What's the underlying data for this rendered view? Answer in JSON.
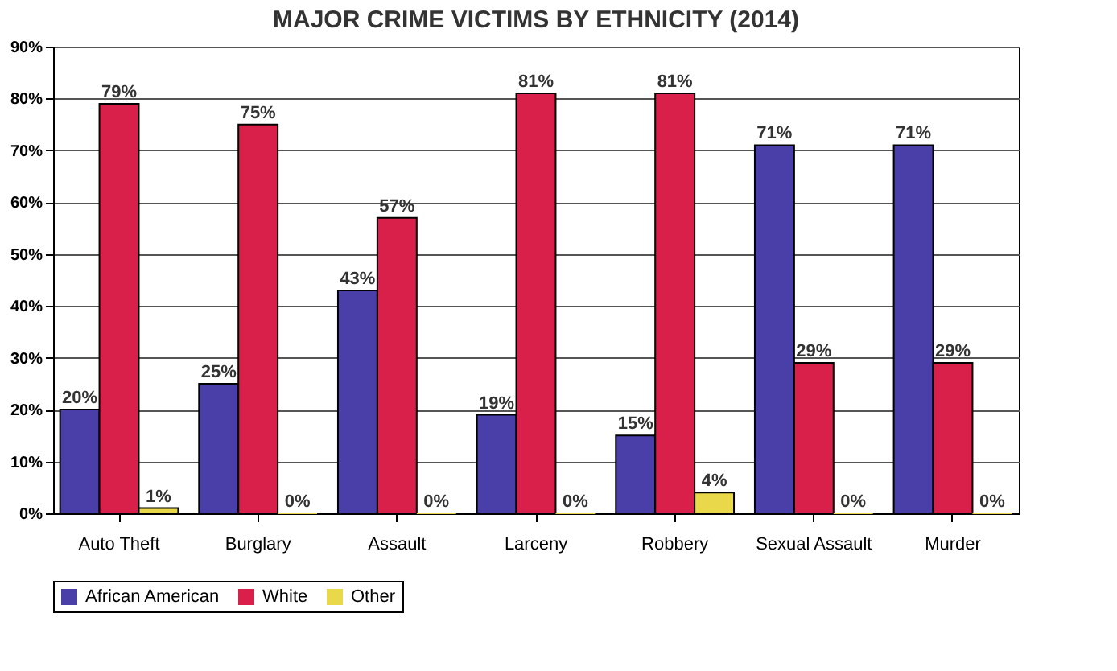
{
  "chart_data": {
    "type": "bar",
    "title": "MAJOR CRIME VICTIMS BY ETHNICITY (2014)",
    "categories": [
      "Auto Theft",
      "Burglary",
      "Assault",
      "Larceny",
      "Robbery",
      "Sexual Assault",
      "Murder"
    ],
    "series": [
      {
        "name": "African American",
        "color": "#4a3fa8",
        "values": [
          20,
          25,
          43,
          19,
          15,
          71,
          71
        ],
        "value_labels": [
          "20%",
          "25%",
          "43%",
          "19%",
          "15%",
          "71%",
          "71%"
        ]
      },
      {
        "name": "White",
        "color": "#d8204a",
        "values": [
          79,
          75,
          57,
          81,
          81,
          29,
          29
        ],
        "value_labels": [
          "79%",
          "75%",
          "57%",
          "81%",
          "81%",
          "29%",
          "29%"
        ]
      },
      {
        "name": "Other",
        "color": "#e8d84a",
        "values": [
          1,
          0,
          0,
          0,
          4,
          0,
          0
        ],
        "value_labels": [
          "1%",
          "0%",
          "0%",
          "0%",
          "4%",
          "0%",
          "0%"
        ]
      }
    ],
    "ylim": [
      0,
      90
    ],
    "yticks": [
      {
        "value": 0,
        "label": "0%"
      },
      {
        "value": 10,
        "label": "10%"
      },
      {
        "value": 20,
        "label": "20%"
      },
      {
        "value": 30,
        "label": "30%"
      },
      {
        "value": 40,
        "label": "40%"
      },
      {
        "value": 50,
        "label": "50%"
      },
      {
        "value": 60,
        "label": "60%"
      },
      {
        "value": 70,
        "label": "70%"
      },
      {
        "value": 80,
        "label": "80%"
      },
      {
        "value": 90,
        "label": "90%"
      }
    ],
    "grid": "y",
    "legend": "bottom"
  }
}
